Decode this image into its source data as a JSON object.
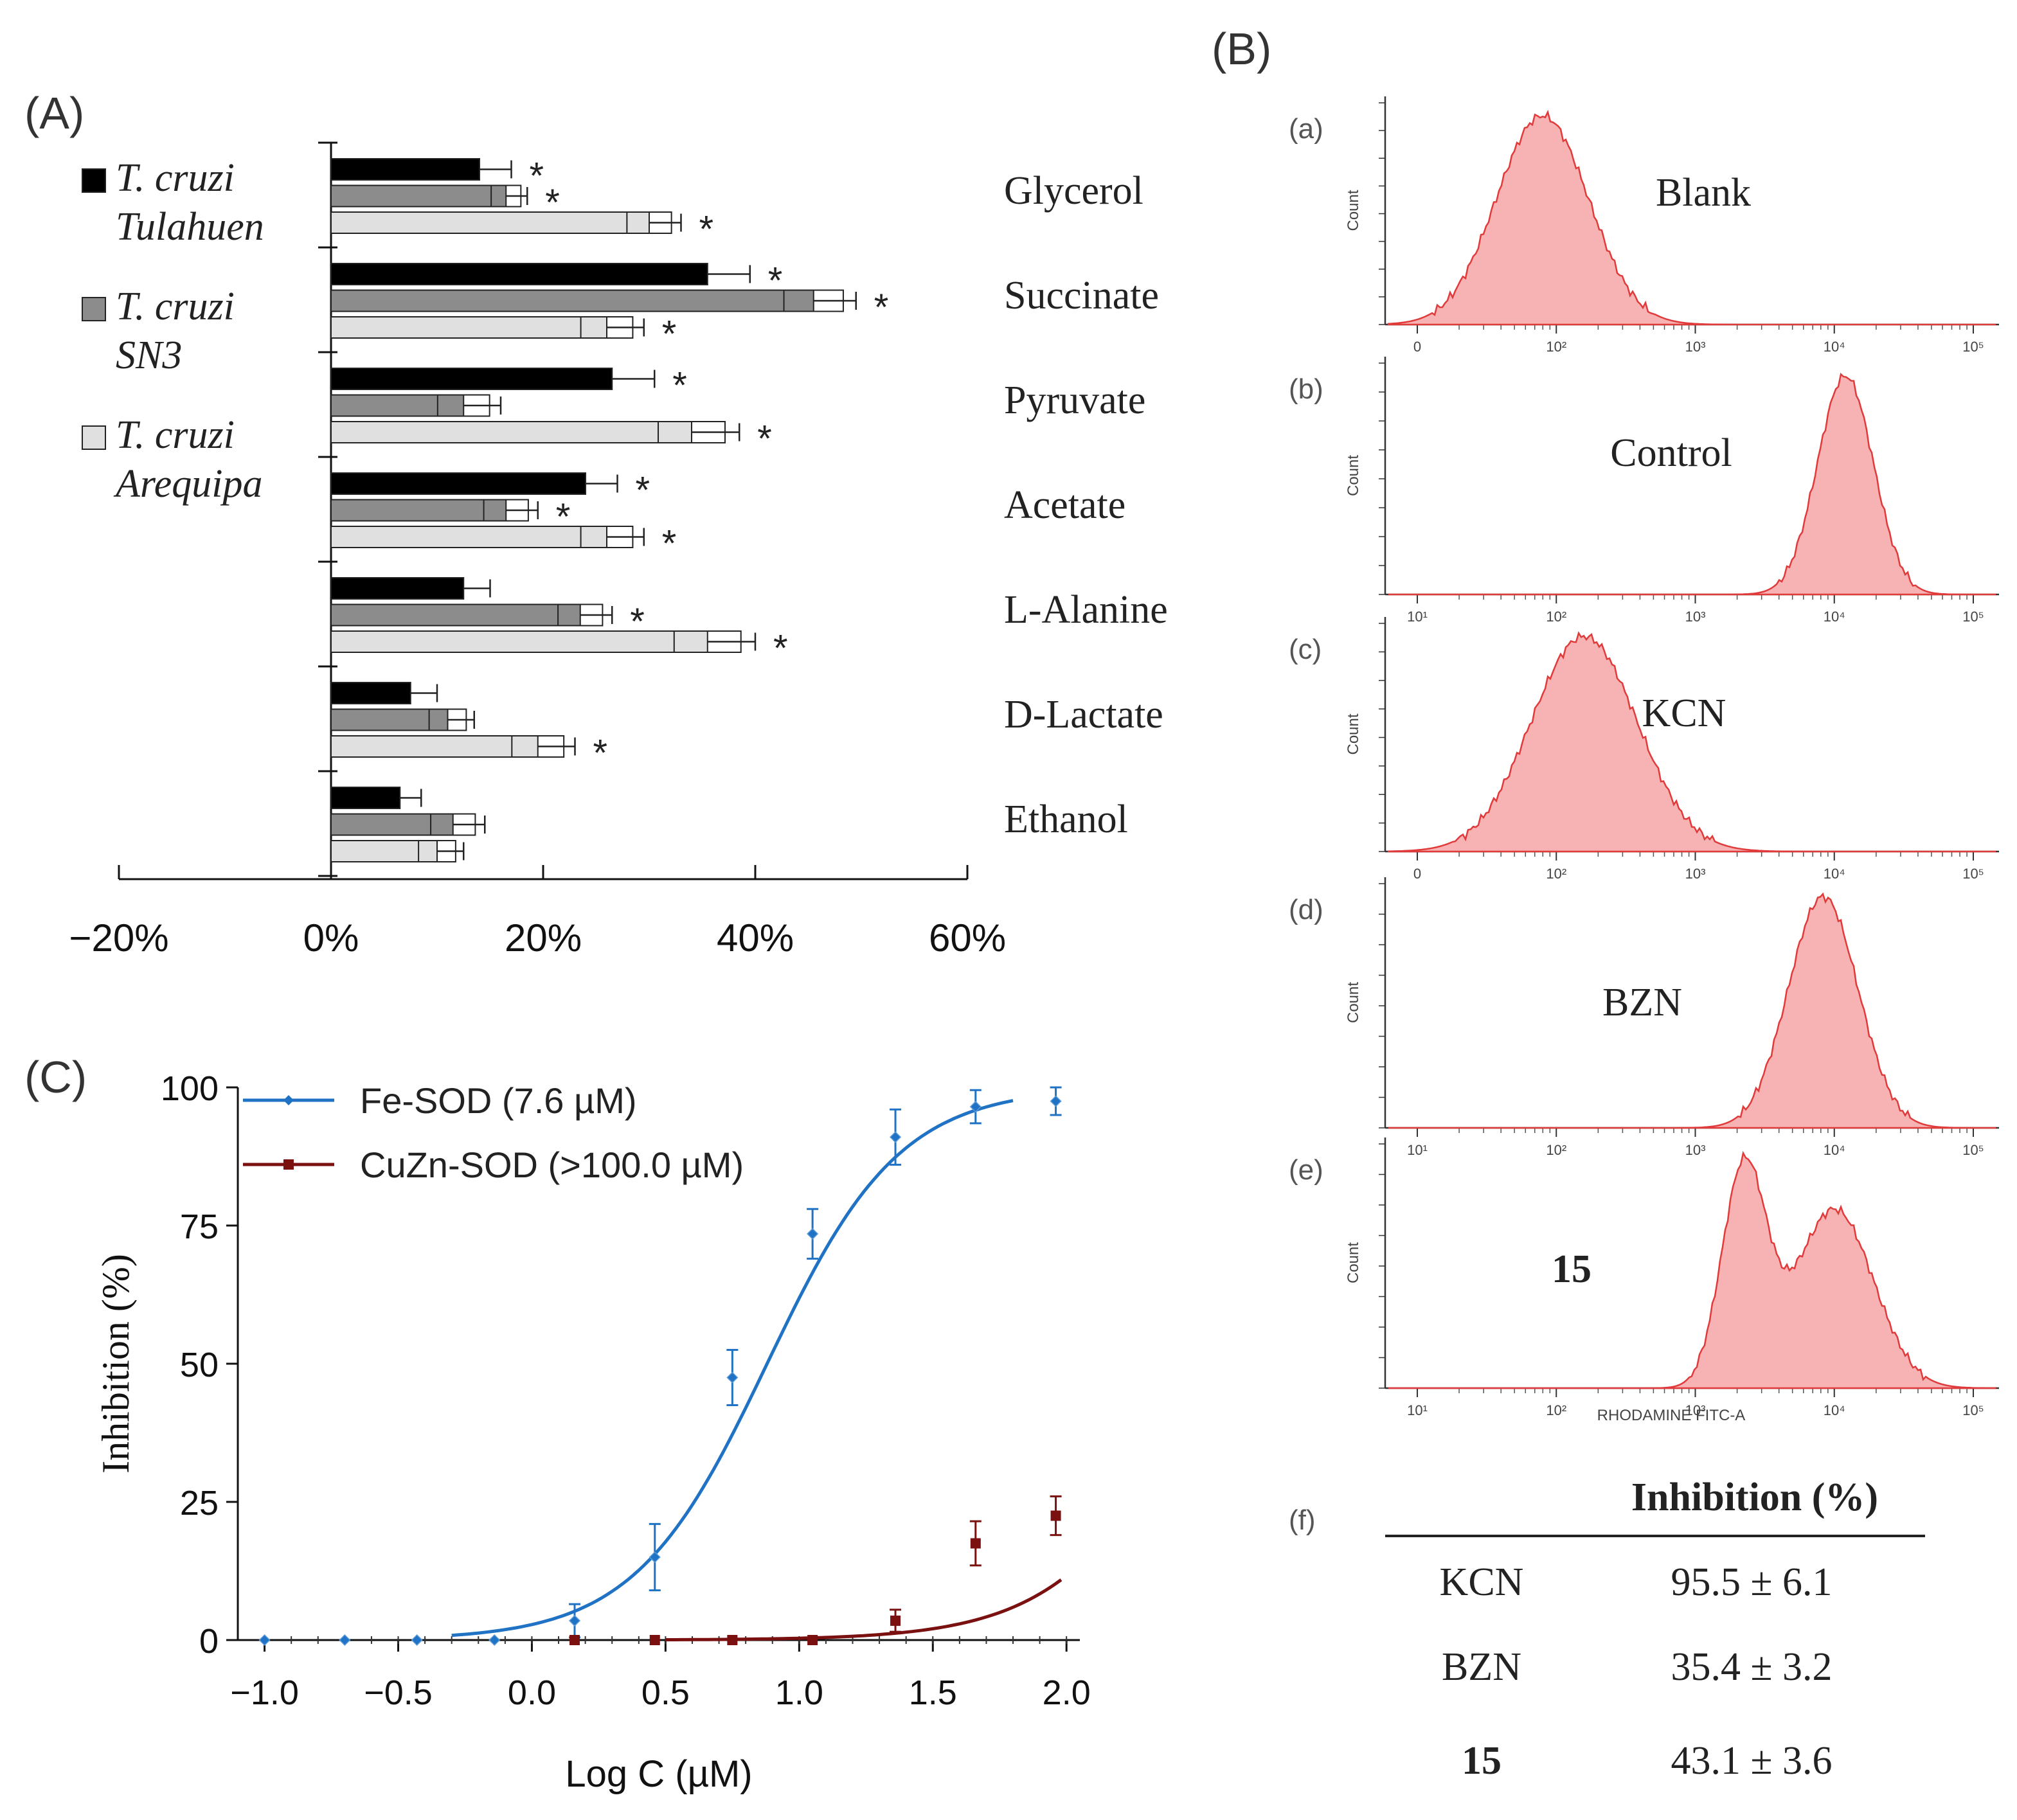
{
  "panel_labels": {
    "A": "(A)",
    "B": "(B)",
    "C": "(C)"
  },
  "chart_data": [
    {
      "panel": "A",
      "type": "bar",
      "orientation": "horizontal",
      "categories": [
        "Glycerol",
        "Succinate",
        "Pyruvate",
        "Acetate",
        "L-Alanine",
        "D-Lactate",
        "Ethanol"
      ],
      "series": [
        {
          "name": "Tulahuen",
          "legend_line1": "T. cruzi",
          "legend_line2": "Tulahuen",
          "color": "#000000",
          "values": [
            14,
            35.5,
            26.5,
            24,
            12.5,
            7.5,
            6.5
          ],
          "errors": [
            3,
            4,
            4,
            3,
            2.5,
            2.5,
            2
          ],
          "significant": [
            true,
            true,
            true,
            true,
            false,
            false,
            false
          ]
        },
        {
          "name": "SN3",
          "legend_line1": "T. cruzi",
          "legend_line2": "SN3",
          "color": "#8c8c8c",
          "values": [
            16.5,
            45.5,
            12.5,
            16.5,
            23.5,
            11,
            11.5
          ],
          "errors": [
            2,
            4,
            3.5,
            3,
            3,
            2.5,
            3
          ],
          "significant": [
            true,
            true,
            false,
            true,
            true,
            false,
            false
          ]
        },
        {
          "name": "Arequipa",
          "legend_line1": "T. cruzi",
          "legend_line2": "Arequipa",
          "color": "#e0e0e0",
          "values": [
            30,
            26,
            34,
            26,
            35.5,
            19.5,
            10
          ],
          "errors": [
            3,
            3.5,
            4.5,
            3.5,
            4.5,
            3.5,
            2.5
          ],
          "significant": [
            true,
            true,
            true,
            true,
            true,
            true,
            false
          ]
        }
      ],
      "significance_mark": "*",
      "xlim": [
        -20,
        60
      ],
      "xticks": [
        -20,
        0,
        20,
        40,
        60
      ],
      "xtick_labels": [
        "−20%",
        "0%",
        "20%",
        "40%",
        "60%"
      ]
    },
    {
      "panel": "C",
      "type": "line",
      "xlabel": "Log C (µM)",
      "ylabel": "Inhibition (%)",
      "xlim": [
        -1.1,
        2.05
      ],
      "ylim": [
        0,
        100
      ],
      "xticks": [
        -1.0,
        -0.5,
        0.0,
        0.5,
        1.0,
        1.5,
        2.0
      ],
      "xtick_labels": [
        "−1.0",
        "−0.5",
        "0.0",
        "0.5",
        "1.0",
        "1.5",
        "2.0"
      ],
      "yticks": [
        0,
        25,
        50,
        75,
        100
      ],
      "ytick_labels": [
        "0",
        "25",
        "50",
        "75",
        "100"
      ],
      "series": [
        {
          "name": "Fe-SOD (7.6 µM)",
          "color": "#1f72c4",
          "ic50_log": 0.88,
          "hill": 1.75,
          "x": [
            -1.0,
            -0.7,
            -0.43,
            -0.14,
            0.16,
            0.46,
            0.75,
            1.05,
            1.36,
            1.66,
            1.96
          ],
          "y": [
            0,
            0,
            0,
            0,
            3.5,
            15,
            47.5,
            73.5,
            91,
            96.5,
            97.5
          ],
          "err": [
            0,
            0,
            0,
            0,
            3,
            6,
            5,
            4.5,
            5,
            3,
            2.5
          ]
        },
        {
          "name": "CuZn-SOD (>100.0 µM)",
          "color": "#7a1010",
          "ic50_log": 2.55,
          "hill": 1.6,
          "x": [
            0.16,
            0.46,
            0.75,
            1.05,
            1.36,
            1.66,
            1.96
          ],
          "y": [
            0,
            0,
            0,
            0,
            3.5,
            17.5,
            22.5
          ],
          "err": [
            0,
            0,
            0,
            0,
            2,
            4,
            3.5
          ]
        }
      ]
    },
    {
      "panel": "B",
      "type": "histogram",
      "xlabel": "RHODAMINE FITC-A",
      "ylabel": "Count",
      "subpanels": [
        {
          "tag": "(a)",
          "label": "Blank",
          "peaks": [
            [
              1.9,
              0.33
            ]
          ],
          "decade_ticks": [
            "0",
            "10²",
            "10³",
            "10⁴",
            "10⁵"
          ]
        },
        {
          "tag": "(b)",
          "label": "Control",
          "peaks": [
            [
              4.08,
              0.2
            ]
          ],
          "decade_ticks": [
            "10¹",
            "10²",
            "10³",
            "10⁴",
            "10⁵"
          ]
        },
        {
          "tag": "(c)",
          "label": "KCN",
          "peaks": [
            [
              2.2,
              0.38
            ]
          ],
          "decade_ticks": [
            "0",
            "10²",
            "10³",
            "10⁴",
            "10⁵"
          ]
        },
        {
          "tag": "(d)",
          "label": "BZN",
          "peaks": [
            [
              3.92,
              0.25
            ]
          ],
          "decade_ticks": [
            "10¹",
            "10²",
            "10³",
            "10⁴",
            "10⁵"
          ]
        },
        {
          "tag": "(e)",
          "label": "15",
          "peaks": [
            [
              3.35,
              0.16
            ],
            [
              4.0,
              0.28
            ]
          ],
          "decade_ticks": [
            "10¹",
            "10²",
            "10³",
            "10⁴",
            "10⁵"
          ]
        }
      ]
    },
    {
      "panel": "B-f",
      "type": "table",
      "tag": "(f)",
      "header": "Inhibition (%)",
      "rows": [
        {
          "compound": "KCN",
          "value": "95.5 ± 6.1"
        },
        {
          "compound": "BZN",
          "value": "35.4 ± 3.2"
        },
        {
          "compound": "15",
          "value": "43.1 ± 3.6"
        }
      ]
    }
  ]
}
